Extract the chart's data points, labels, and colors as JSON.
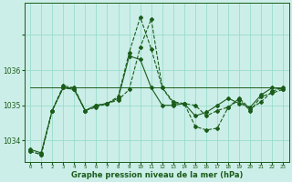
{
  "title": "Graphe pression niveau de la mer (hPa)",
  "bg_color": "#cceee8",
  "grid_color": "#99ddcc",
  "line_color": "#1a5c1a",
  "x_min": -0.5,
  "x_max": 23.5,
  "y_min": 1033.4,
  "y_max": 1037.9,
  "ytick_locs": [
    1034,
    1035,
    1036,
    1037
  ],
  "ytick_labels": [
    "1034",
    "1035",
    "1036",
    ""
  ],
  "xticks": [
    0,
    1,
    2,
    3,
    4,
    5,
    6,
    7,
    8,
    9,
    10,
    11,
    12,
    13,
    14,
    15,
    16,
    17,
    18,
    19,
    20,
    21,
    22,
    23
  ],
  "series": [
    {
      "y": [
        1033.7,
        1033.6,
        1034.85,
        1035.5,
        1035.45,
        1034.85,
        1034.95,
        1035.05,
        1035.15,
        1035.45,
        1036.65,
        1037.45,
        1035.5,
        1035.05,
        1035.05,
        1035.0,
        1034.7,
        1034.85,
        1034.95,
        1035.15,
        1034.85,
        1035.25,
        1035.35,
        1035.45
      ],
      "linestyle": "--",
      "linewidth": 0.8,
      "marker": "D",
      "markersize": 2.0
    },
    {
      "y": [
        1033.75,
        1033.65,
        1034.85,
        1035.5,
        1035.45,
        1034.85,
        1035.0,
        1035.05,
        1035.2,
        1036.4,
        1036.3,
        1035.5,
        1035.0,
        1035.0,
        1035.05,
        1034.7,
        1034.8,
        1035.0,
        1035.2,
        1035.05,
        1034.95,
        1035.3,
        1035.5,
        1035.45
      ],
      "linestyle": "-",
      "linewidth": 0.8,
      "marker": "D",
      "markersize": 2.0
    },
    {
      "y": [
        1033.7,
        1033.6,
        1034.85,
        1035.55,
        1035.5,
        1034.85,
        1035.0,
        1035.05,
        1035.25,
        1036.5,
        1037.5,
        1036.6,
        1035.5,
        1035.1,
        1035.05,
        1034.4,
        1034.3,
        1034.35,
        1034.95,
        1035.2,
        1034.9,
        1035.1,
        1035.4,
        1035.5
      ],
      "linestyle": "--",
      "linewidth": 0.8,
      "marker": "D",
      "markersize": 2.0
    },
    {
      "y": [
        1035.5,
        1035.5,
        1035.5,
        1035.5,
        1035.5,
        1035.5,
        1035.5,
        1035.5,
        1035.5,
        1035.5,
        1035.5,
        1035.5,
        1035.5,
        1035.5,
        1035.5,
        1035.5,
        1035.5,
        1035.5,
        1035.5,
        1035.5,
        1035.5,
        1035.5,
        1035.5,
        1035.5
      ],
      "linestyle": "-",
      "linewidth": 0.7,
      "marker": null,
      "markersize": 0
    }
  ]
}
